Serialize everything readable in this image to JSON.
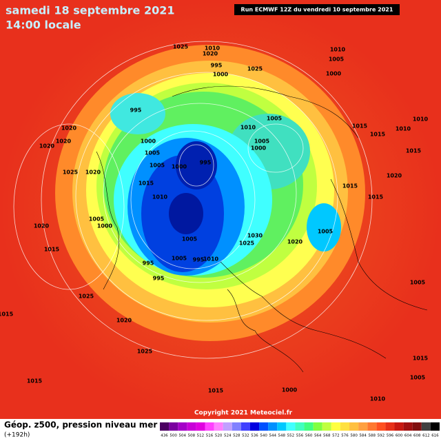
{
  "header": {
    "date": "samedi 18 septembre 2021",
    "time": "14:00 locale",
    "run": "Run ECMWF 12Z du vendredi 10 septembre 2021"
  },
  "footer": {
    "title": "Géop. z500, pression niveau mer",
    "forecast": "(+192h)",
    "copyright": "Copyright 2021 Meteociel.fr"
  },
  "scale": {
    "labels": [
      "436",
      "500",
      "504",
      "508",
      "512",
      "516",
      "520",
      "524",
      "528",
      "532",
      "536",
      "540",
      "544",
      "548",
      "552",
      "556",
      "560",
      "564",
      "568",
      "572",
      "576",
      "580",
      "584",
      "588",
      "592",
      "596",
      "600",
      "604",
      "608",
      "612",
      "616"
    ],
    "colors": [
      "#4b0062",
      "#7a00a0",
      "#a400c8",
      "#c800d8",
      "#e000e0",
      "#ff40ff",
      "#ff80ff",
      "#c0a0ff",
      "#8080ff",
      "#4040ff",
      "#0000e0",
      "#0050ff",
      "#0090ff",
      "#00c8ff",
      "#40ffff",
      "#40ffc0",
      "#40ff80",
      "#80ff40",
      "#c0ff40",
      "#ffff40",
      "#ffe040",
      "#ffc040",
      "#ffa040",
      "#ff7830",
      "#ff5020",
      "#e83018",
      "#c81810",
      "#a01010",
      "#801010",
      "#404040",
      "#000000"
    ]
  },
  "isobar_labels": [
    "1025",
    "1020",
    "1010",
    "995",
    "1000",
    "1025",
    "1010",
    "1005",
    "1000",
    "995",
    "1020",
    "1020",
    "1020",
    "1010",
    "1005",
    "1010",
    "1005",
    "1000",
    "1015",
    "1010",
    "1015",
    "1015",
    "1025",
    "1020",
    "1000",
    "1005",
    "1005",
    "1000",
    "995",
    "1015",
    "1015",
    "1020",
    "1015",
    "1010",
    "1005",
    "1000",
    "1020",
    "1015",
    "1005",
    "1030",
    "1020",
    "1005",
    "1025",
    "1005",
    "995",
    "1010",
    "995",
    "995",
    "1025",
    "1020",
    "1025",
    "1015",
    "1015",
    "1015",
    "1010",
    "1005",
    "1005",
    "1015",
    "1000"
  ]
}
